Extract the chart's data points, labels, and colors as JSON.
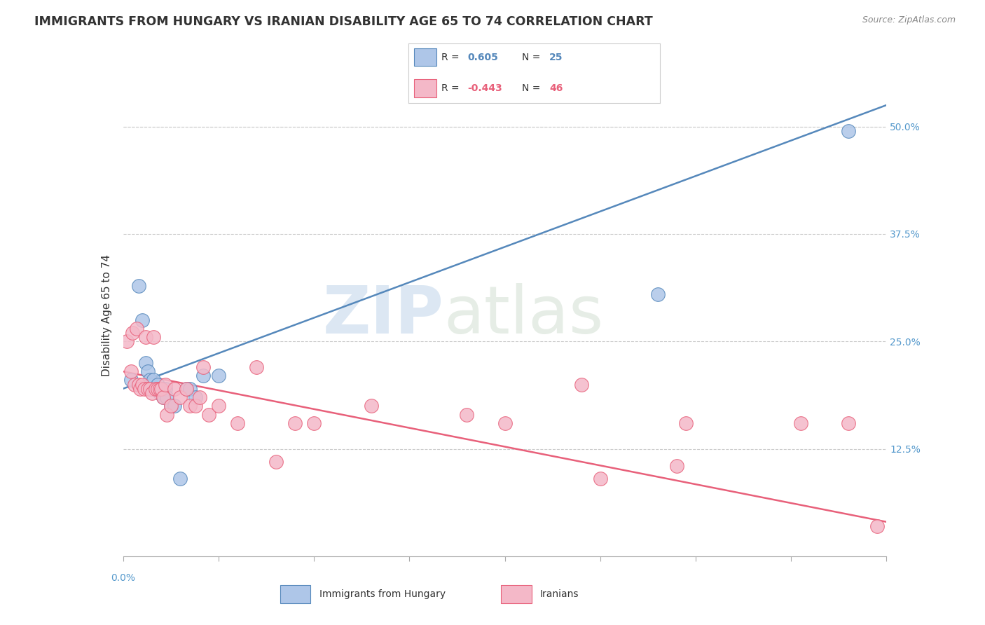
{
  "title": "IMMIGRANTS FROM HUNGARY VS IRANIAN DISABILITY AGE 65 TO 74 CORRELATION CHART",
  "source": "Source: ZipAtlas.com",
  "ylabel": "Disability Age 65 to 74",
  "right_yticks": [
    "50.0%",
    "37.5%",
    "25.0%",
    "12.5%"
  ],
  "right_ytick_vals": [
    0.5,
    0.375,
    0.25,
    0.125
  ],
  "xlim": [
    0.0,
    0.4
  ],
  "ylim": [
    0.0,
    0.56
  ],
  "watermark_zip": "ZIP",
  "watermark_atlas": "atlas",
  "hungary_R": "0.605",
  "hungary_N": "25",
  "iran_R": "-0.443",
  "iran_N": "46",
  "hungary_color": "#aec6e8",
  "iran_color": "#f4b8c8",
  "hungary_line_color": "#5588bb",
  "iran_line_color": "#e8607a",
  "hungary_x": [
    0.004,
    0.008,
    0.01,
    0.012,
    0.013,
    0.014,
    0.015,
    0.016,
    0.017,
    0.018,
    0.019,
    0.02,
    0.021,
    0.022,
    0.023,
    0.025,
    0.027,
    0.03,
    0.033,
    0.035,
    0.038,
    0.042,
    0.05,
    0.28,
    0.38
  ],
  "hungary_y": [
    0.205,
    0.315,
    0.275,
    0.225,
    0.215,
    0.205,
    0.195,
    0.205,
    0.195,
    0.2,
    0.19,
    0.195,
    0.185,
    0.195,
    0.185,
    0.175,
    0.175,
    0.09,
    0.195,
    0.195,
    0.185,
    0.21,
    0.21,
    0.305,
    0.495
  ],
  "iran_x": [
    0.002,
    0.004,
    0.005,
    0.006,
    0.007,
    0.008,
    0.009,
    0.01,
    0.011,
    0.012,
    0.013,
    0.014,
    0.015,
    0.016,
    0.017,
    0.018,
    0.019,
    0.02,
    0.021,
    0.022,
    0.023,
    0.025,
    0.027,
    0.03,
    0.033,
    0.035,
    0.038,
    0.04,
    0.042,
    0.045,
    0.05,
    0.06,
    0.07,
    0.08,
    0.09,
    0.1,
    0.13,
    0.18,
    0.2,
    0.24,
    0.25,
    0.29,
    0.295,
    0.355,
    0.38,
    0.395
  ],
  "iran_y": [
    0.25,
    0.215,
    0.26,
    0.2,
    0.265,
    0.2,
    0.195,
    0.2,
    0.195,
    0.255,
    0.195,
    0.195,
    0.19,
    0.255,
    0.195,
    0.195,
    0.195,
    0.195,
    0.185,
    0.2,
    0.165,
    0.175,
    0.195,
    0.185,
    0.195,
    0.175,
    0.175,
    0.185,
    0.22,
    0.165,
    0.175,
    0.155,
    0.22,
    0.11,
    0.155,
    0.155,
    0.175,
    0.165,
    0.155,
    0.2,
    0.09,
    0.105,
    0.155,
    0.155,
    0.155,
    0.035
  ],
  "legend_items": [
    "Immigrants from Hungary",
    "Iranians"
  ],
  "background_color": "#ffffff",
  "grid_color": "#cccccc",
  "hungary_trendline": [
    0.0,
    0.4,
    0.195,
    0.525
  ],
  "iran_trendline": [
    0.0,
    0.4,
    0.215,
    0.04
  ]
}
